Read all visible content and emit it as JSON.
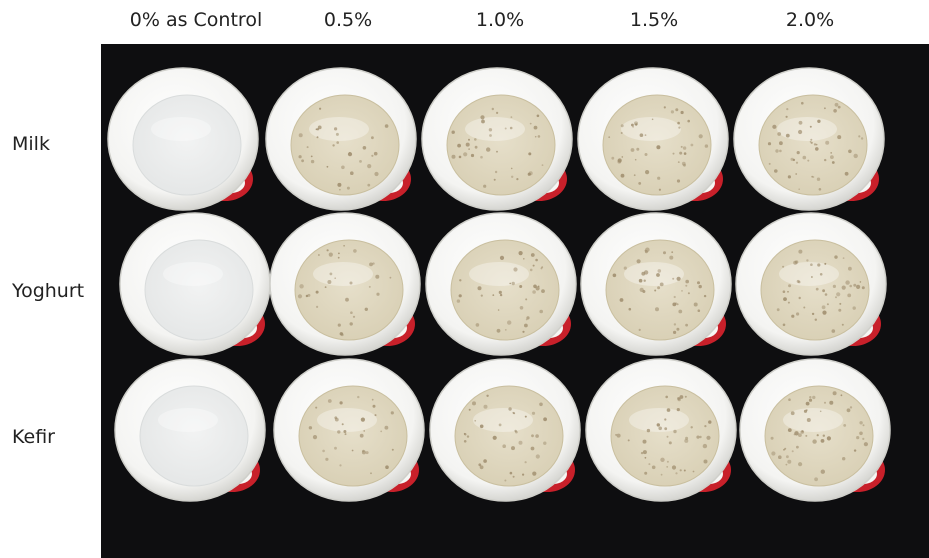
{
  "columns": [
    "0% as Control",
    "0.5%",
    "1.0%",
    "1.5%",
    "2.0%"
  ],
  "rows": [
    "Milk",
    "Yoghurt",
    "Kefir"
  ],
  "photo": {
    "background_color": "#0e0e10",
    "cup_rim_color": "#f4f4f2",
    "cup_print_color": "#c8202a",
    "control_residue_color": "#e4e6e6",
    "treated_residue_color": "#d8cfb4",
    "speckle_color": "#9c8a6a",
    "cups": [
      [
        {
          "treatment": "0% as Control",
          "residue": "clean"
        },
        {
          "treatment": "0.5%",
          "residue": "speckled"
        },
        {
          "treatment": "1.0%",
          "residue": "speckled"
        },
        {
          "treatment": "1.5%",
          "residue": "speckled"
        },
        {
          "treatment": "2.0%",
          "residue": "speckled"
        }
      ],
      [
        {
          "treatment": "0% as Control",
          "residue": "clean"
        },
        {
          "treatment": "0.5%",
          "residue": "speckled"
        },
        {
          "treatment": "1.0%",
          "residue": "speckled"
        },
        {
          "treatment": "1.5%",
          "residue": "speckled"
        },
        {
          "treatment": "2.0%",
          "residue": "speckled"
        }
      ],
      [
        {
          "treatment": "0% as Control",
          "residue": "clean"
        },
        {
          "treatment": "0.5%",
          "residue": "speckled"
        },
        {
          "treatment": "1.0%",
          "residue": "speckled"
        },
        {
          "treatment": "1.5%",
          "residue": "speckled"
        },
        {
          "treatment": "2.0%",
          "residue": "speckled"
        }
      ]
    ]
  }
}
